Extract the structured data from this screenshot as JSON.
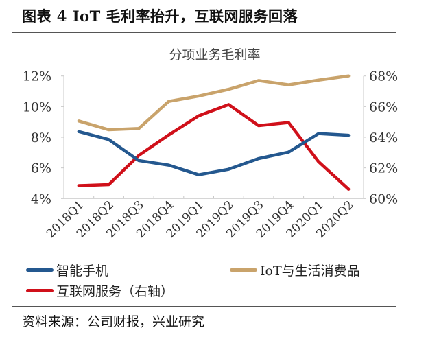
{
  "header": {
    "title": "图表 4 IoT 毛利率抬升，互联网服务回落"
  },
  "source": "资料来源：公司财报，兴业研究",
  "chart_data": {
    "type": "line",
    "title": "分项业务毛利率",
    "categories": [
      "2018Q1",
      "2018Q2",
      "2018Q3",
      "2018Q4",
      "2019Q1",
      "2019Q2",
      "2019Q3",
      "2019Q4",
      "2020Q1",
      "2020Q2"
    ],
    "y_left": {
      "range": [
        4,
        12
      ],
      "ticks": [
        "4%",
        "6%",
        "8%",
        "10%",
        "12%"
      ],
      "tick_values": [
        4,
        6,
        8,
        10,
        12
      ]
    },
    "y_right": {
      "range": [
        60,
        68
      ],
      "ticks": [
        "60%",
        "62%",
        "64%",
        "66%",
        "68%"
      ],
      "tick_values": [
        60,
        62,
        64,
        66,
        68
      ]
    },
    "grid": false,
    "legend_position": "bottom",
    "series": [
      {
        "name": "智能手机",
        "axis": "left",
        "color": "#24588f",
        "values": [
          8.37,
          7.85,
          6.48,
          6.18,
          5.55,
          5.91,
          6.61,
          7.03,
          8.24,
          8.13
        ]
      },
      {
        "name": "IoT与生活消费品",
        "axis": "left",
        "color": "#c9a36b",
        "values": [
          9.06,
          8.49,
          8.57,
          10.34,
          10.69,
          11.13,
          11.7,
          11.42,
          11.73,
          12.0
        ]
      },
      {
        "name": "互联网服务（右轴）",
        "axis": "right",
        "color": "#d0101a",
        "values": [
          60.84,
          60.91,
          62.81,
          64.15,
          65.4,
          66.13,
          64.76,
          64.96,
          62.4,
          60.61
        ]
      }
    ]
  }
}
